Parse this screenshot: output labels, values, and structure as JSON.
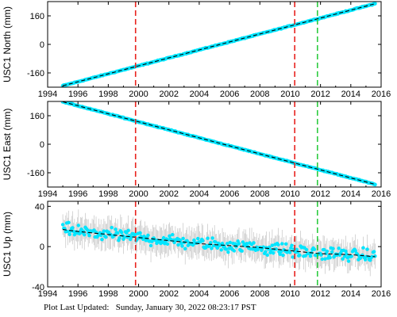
{
  "chart_data": [
    {
      "type": "scatter",
      "ylabel": "USC1 North (mm)",
      "xlim": [
        1994,
        2016
      ],
      "ylim": [
        -240,
        240
      ],
      "xticks": [
        1994,
        1996,
        1998,
        2000,
        2002,
        2004,
        2006,
        2008,
        2010,
        2012,
        2014,
        2016
      ],
      "yticks": [
        -160,
        0,
        160
      ],
      "grid": false,
      "series": [
        {
          "kind": "data",
          "color": "#00e5ff",
          "errorbar_color": "#aaaaaa",
          "x": [
            1995.0,
            2015.6
          ],
          "y": [
            -232,
            228
          ],
          "scatter_mm": 3
        },
        {
          "kind": "trend",
          "color": "#000000",
          "style": "dashed",
          "x": [
            1995.0,
            2015.6
          ],
          "y": [
            -232,
            228
          ]
        }
      ],
      "vlines": [
        {
          "x": 1999.8,
          "color": "#e8231e",
          "style": "dashed"
        },
        {
          "x": 2010.3,
          "color": "#e8231e",
          "style": "dashed"
        },
        {
          "x": 2011.8,
          "color": "#2ecc40",
          "style": "dashed"
        }
      ]
    },
    {
      "type": "scatter",
      "ylabel": "USC1 East (mm)",
      "xlim": [
        1994,
        2016
      ],
      "ylim": [
        -240,
        240
      ],
      "xticks": [
        1994,
        1996,
        1998,
        2000,
        2002,
        2004,
        2006,
        2008,
        2010,
        2012,
        2014,
        2016
      ],
      "yticks": [
        -160,
        0,
        160
      ],
      "grid": false,
      "series": [
        {
          "kind": "data",
          "color": "#00e5ff",
          "errorbar_color": "#aaaaaa",
          "x": [
            1995.0,
            2015.6
          ],
          "y": [
            238,
            -225
          ],
          "scatter_mm": 3
        },
        {
          "kind": "trend",
          "color": "#000000",
          "style": "dashed",
          "x": [
            1995.0,
            2015.6
          ],
          "y": [
            238,
            -225
          ]
        }
      ],
      "vlines": [
        {
          "x": 1999.8,
          "color": "#e8231e",
          "style": "dashed"
        },
        {
          "x": 2010.3,
          "color": "#e8231e",
          "style": "dashed"
        },
        {
          "x": 2011.8,
          "color": "#2ecc40",
          "style": "dashed"
        }
      ]
    },
    {
      "type": "scatter",
      "ylabel": "USC1 Up (mm)",
      "xlim": [
        1994,
        2016
      ],
      "ylim": [
        -40,
        45
      ],
      "xticks": [
        1994,
        1996,
        1998,
        2000,
        2002,
        2004,
        2006,
        2008,
        2010,
        2012,
        2014,
        2016
      ],
      "yticks": [
        -40,
        0,
        40
      ],
      "grid": false,
      "series": [
        {
          "kind": "data",
          "color": "#00e5ff",
          "errorbar_color": "#aaaaaa",
          "x": [
            1995.0,
            2015.6
          ],
          "y": [
            17,
            -10
          ],
          "scatter_mm": 9,
          "errorbar_mm": 12
        },
        {
          "kind": "trend",
          "color": "#000000",
          "style": "dashed",
          "x": [
            1995.0,
            1996.0,
            1998.0,
            2000.0,
            2002.0,
            2004.0,
            2006.0,
            2008.0,
            2010.0,
            2012.0,
            2014.0,
            2015.6
          ],
          "y": [
            17,
            15,
            12,
            9,
            6,
            3,
            1,
            -1,
            -4,
            -7,
            -8,
            -10
          ]
        }
      ],
      "vlines": [
        {
          "x": 1999.8,
          "color": "#e8231e",
          "style": "dashed"
        },
        {
          "x": 2010.3,
          "color": "#e8231e",
          "style": "dashed"
        },
        {
          "x": 2011.8,
          "color": "#2ecc40",
          "style": "dashed"
        }
      ]
    }
  ],
  "footer": {
    "label": "Plot Last Updated:",
    "timestamp": "Sunday, January 30, 2022 08:23:17 PST"
  }
}
